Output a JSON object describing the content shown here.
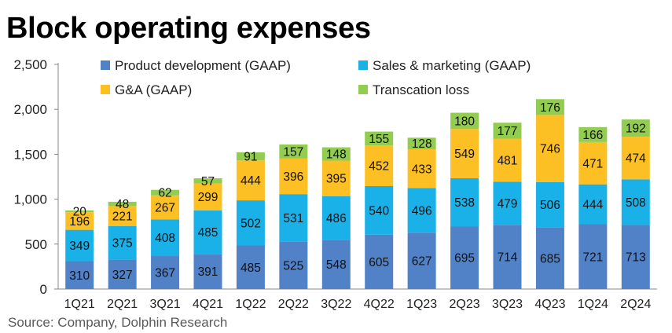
{
  "chart_data": {
    "type": "bar",
    "stacked": true,
    "title": "Block operating expenses",
    "categories": [
      "1Q21",
      "2Q21",
      "3Q21",
      "4Q21",
      "1Q22",
      "2Q22",
      "3Q22",
      "4Q22",
      "1Q23",
      "2Q23",
      "3Q23",
      "4Q23",
      "1Q24",
      "2Q24"
    ],
    "series": [
      {
        "name": "Product development (GAAP)",
        "color": "#5182C8",
        "values": [
          310,
          327,
          367,
          391,
          485,
          525,
          548,
          605,
          627,
          695,
          714,
          685,
          721,
          713
        ]
      },
      {
        "name": "Sales & marketing (GAAP)",
        "color": "#1AB0E8",
        "values": [
          349,
          375,
          408,
          485,
          502,
          531,
          486,
          540,
          496,
          538,
          479,
          506,
          444,
          508
        ]
      },
      {
        "name": "G&A (GAAP)",
        "color": "#FCC024",
        "values": [
          196,
          221,
          267,
          299,
          444,
          396,
          395,
          452,
          433,
          549,
          481,
          746,
          471,
          474
        ]
      },
      {
        "name": "Transcation loss",
        "color": "#92CC50",
        "values": [
          20,
          48,
          62,
          57,
          91,
          157,
          148,
          155,
          128,
          180,
          177,
          176,
          166,
          192
        ]
      }
    ],
    "ylim": [
      0,
      2500
    ],
    "yticks": [
      "0",
      "500",
      "1,000",
      "1,500",
      "2,000",
      "2,500"
    ],
    "xlabel": "",
    "ylabel": "",
    "grid": false,
    "legend": "top",
    "source": "Source: Company, Dolphin Research"
  }
}
